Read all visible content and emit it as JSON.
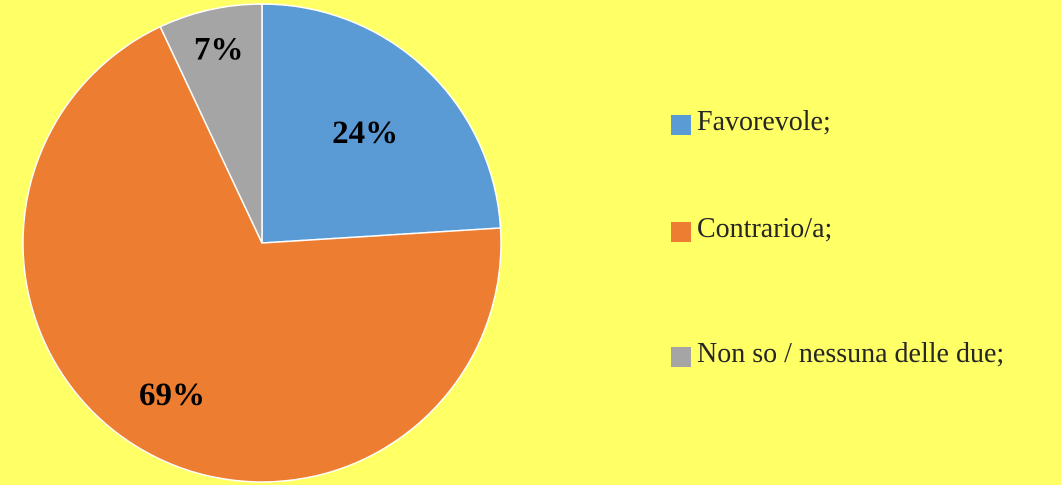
{
  "chart_data": {
    "type": "pie",
    "slices": [
      {
        "label": "Favorevole;",
        "value": 24,
        "display": "24%",
        "color": "#5B9BD5"
      },
      {
        "label": "Contrario/a;",
        "value": 69,
        "display": "69%",
        "color": "#ED7D31"
      },
      {
        "label": "Non so / nessuna delle due;",
        "value": 7,
        "display": "7%",
        "color": "#A5A5A5"
      }
    ],
    "start": "12 o'clock",
    "direction": "clockwise",
    "legend_position": "right",
    "data_labels": "inside, bold percentages"
  },
  "background_color": "#FFFF66"
}
